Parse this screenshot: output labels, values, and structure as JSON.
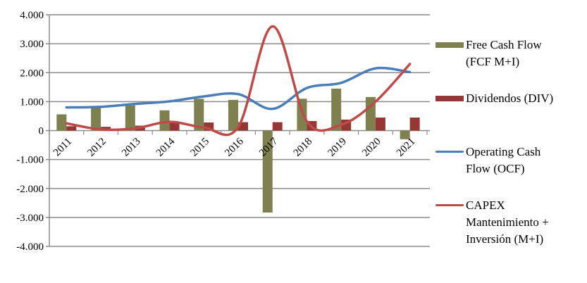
{
  "chart_data": {
    "type": "bar",
    "title": "",
    "xlabel": "",
    "ylabel": "",
    "categories": [
      "2011",
      "2012",
      "2013",
      "2014",
      "2015",
      "2016",
      "2017",
      "2018",
      "2019",
      "2020",
      "2021"
    ],
    "ylim": [
      -4000,
      4000
    ],
    "yticks": [
      4000,
      3000,
      2000,
      1000,
      0,
      -1000,
      -2000,
      -3000,
      -4000
    ],
    "ytick_labels": [
      "4.000",
      "3.000",
      "2.000",
      "1.000",
      "0",
      "-1.000",
      "-2.000",
      "-3.000",
      "-4.000"
    ],
    "grid": true,
    "legend_position": "right",
    "series": [
      {
        "name": "Free Cash Flow (FCF M+I)",
        "kind": "bar",
        "color": "#7f8050",
        "values": [
          560,
          790,
          870,
          700,
          1100,
          1060,
          -2830,
          1100,
          1450,
          1160,
          -300
        ]
      },
      {
        "name": "Dividendos (DIV)",
        "kind": "bar",
        "color": "#953735",
        "values": [
          150,
          130,
          170,
          260,
          280,
          290,
          290,
          330,
          380,
          450,
          450
        ]
      },
      {
        "name": "Operating Cash Flow (OCF)",
        "kind": "line",
        "color": "#4a7ebb",
        "values": [
          800,
          820,
          920,
          1010,
          1180,
          1260,
          750,
          1470,
          1650,
          2150,
          2020
        ]
      },
      {
        "name": "CAPEX Mantenimiento + Inversión (M+I)",
        "kind": "line",
        "color": "#be4b48",
        "values": [
          250,
          40,
          80,
          300,
          110,
          120,
          3600,
          320,
          200,
          1000,
          2300
        ]
      }
    ]
  },
  "legend": {
    "fcf": [
      "Free Cash Flow",
      "(FCF M+I)"
    ],
    "div": [
      "Dividendos (DIV)"
    ],
    "ocf": [
      "Operating Cash",
      "Flow (OCF)"
    ],
    "capex": [
      "CAPEX",
      "Mantenimiento +",
      "Inversión (M+I)"
    ]
  }
}
